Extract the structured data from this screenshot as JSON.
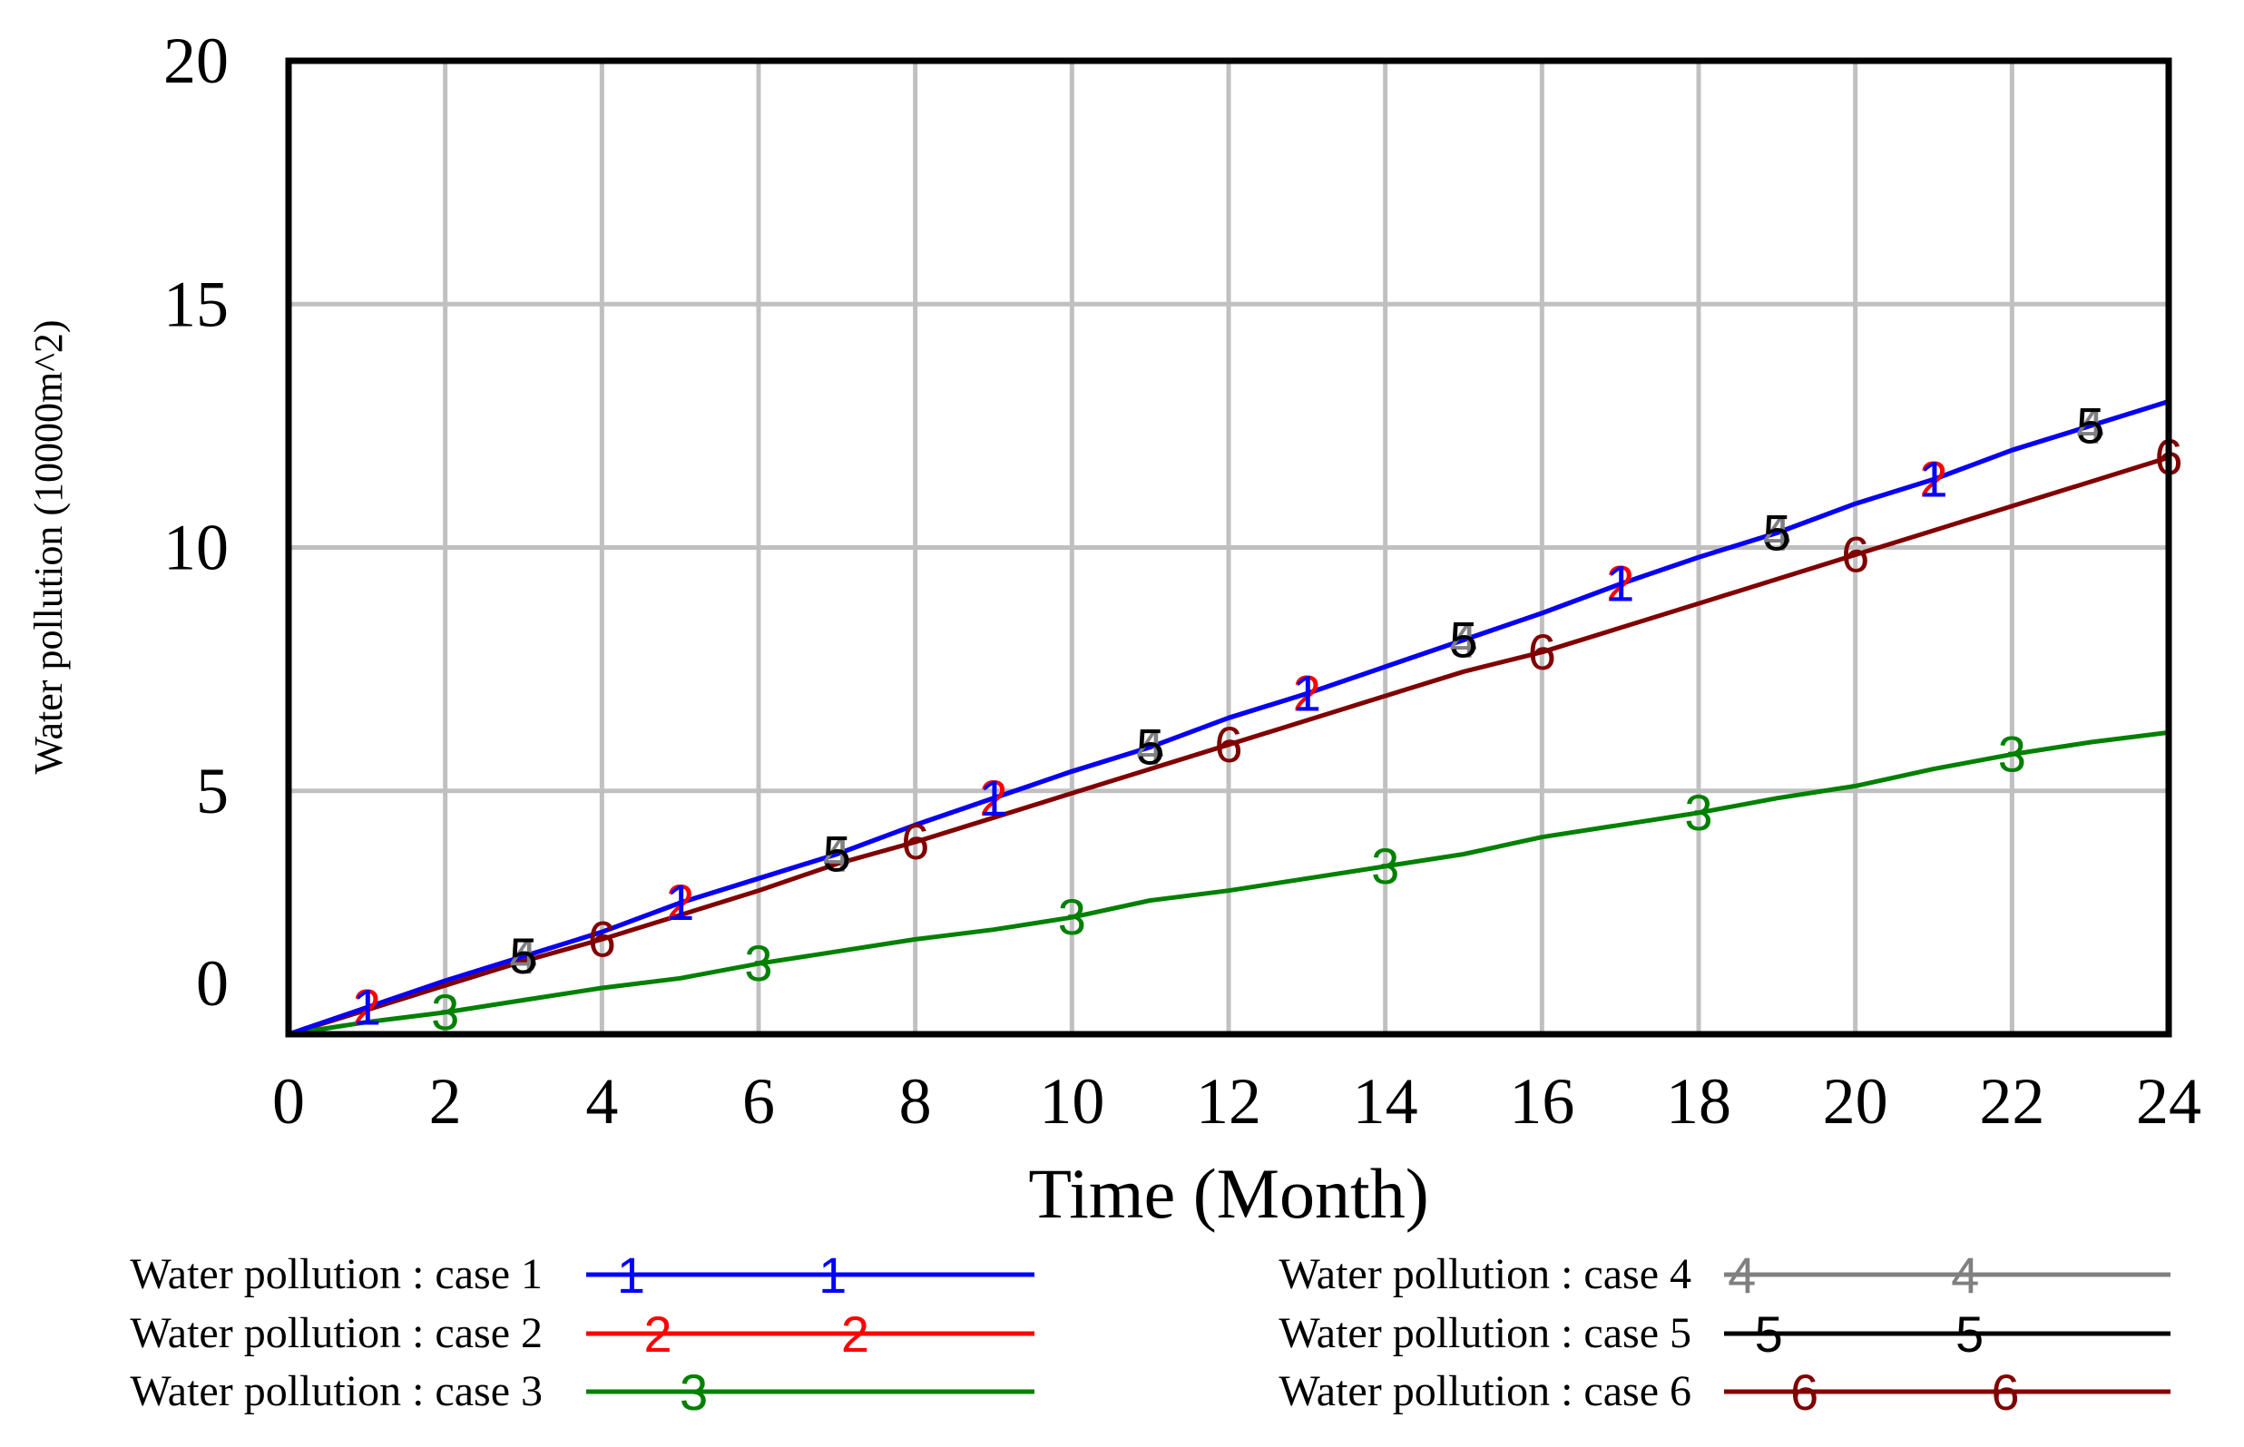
{
  "chart_data": {
    "type": "line",
    "title": "",
    "xlabel": "Time (Month)",
    "ylabel": "Water pollution (10000m^2)",
    "xlim": [
      0,
      24
    ],
    "ylim": [
      0,
      20
    ],
    "xticks": [
      0,
      2,
      4,
      6,
      8,
      10,
      12,
      14,
      16,
      18,
      20,
      22,
      24
    ],
    "yticks": [
      0,
      5,
      10,
      15,
      20
    ],
    "grid": true,
    "legend_position": "bottom",
    "x": [
      0,
      1,
      2,
      3,
      4,
      5,
      6,
      7,
      8,
      9,
      10,
      11,
      12,
      13,
      14,
      15,
      16,
      17,
      18,
      19,
      20,
      21,
      22,
      23,
      24
    ],
    "series": [
      {
        "name": "Water pollution : case 1",
        "marker": "1",
        "color": "#0000ff",
        "values": [
          0,
          0.55,
          1.1,
          1.6,
          2.1,
          2.7,
          3.2,
          3.7,
          4.3,
          4.85,
          5.4,
          5.9,
          6.5,
          7.0,
          7.55,
          8.1,
          8.65,
          9.25,
          9.8,
          10.3,
          10.9,
          11.4,
          12.0,
          12.5,
          13.0
        ]
      },
      {
        "name": "Water pollution : case 2",
        "marker": "2",
        "color": "#ff0000",
        "values": [
          0,
          0.55,
          1.1,
          1.6,
          2.1,
          2.7,
          3.2,
          3.7,
          4.3,
          4.85,
          5.4,
          5.9,
          6.5,
          7.0,
          7.55,
          8.1,
          8.65,
          9.25,
          9.8,
          10.3,
          10.9,
          11.4,
          12.0,
          12.5,
          13.0
        ]
      },
      {
        "name": "Water pollution : case 3",
        "marker": "3",
        "color": "#008000",
        "values": [
          0,
          0.25,
          0.45,
          0.7,
          0.95,
          1.15,
          1.45,
          1.7,
          1.95,
          2.15,
          2.4,
          2.75,
          2.95,
          3.2,
          3.45,
          3.7,
          4.05,
          4.3,
          4.55,
          4.85,
          5.1,
          5.45,
          5.75,
          6.0,
          6.2
        ]
      },
      {
        "name": "Water pollution : case 4",
        "marker": "4",
        "color": "#808080",
        "values": [
          0,
          0.55,
          1.1,
          1.6,
          2.1,
          2.7,
          3.2,
          3.7,
          4.3,
          4.85,
          5.4,
          5.9,
          6.5,
          7.0,
          7.55,
          8.1,
          8.65,
          9.25,
          9.8,
          10.3,
          10.9,
          11.4,
          12.0,
          12.5,
          13.0
        ]
      },
      {
        "name": "Water pollution : case 5",
        "marker": "5",
        "color": "#000000",
        "values": [
          0,
          0.55,
          1.1,
          1.6,
          2.1,
          2.7,
          3.2,
          3.7,
          4.3,
          4.85,
          5.4,
          5.9,
          6.5,
          7.0,
          7.55,
          8.1,
          8.65,
          9.25,
          9.8,
          10.3,
          10.9,
          11.4,
          12.0,
          12.5,
          13.0
        ]
      },
      {
        "name": "Water pollution : case 6",
        "marker": "6",
        "color": "#800000",
        "values": [
          0,
          0.5,
          1.0,
          1.5,
          1.95,
          2.45,
          2.95,
          3.5,
          3.95,
          4.45,
          4.95,
          5.45,
          5.95,
          6.45,
          6.95,
          7.45,
          7.85,
          8.35,
          8.85,
          9.35,
          9.85,
          10.35,
          10.85,
          11.35,
          11.85
        ]
      }
    ]
  }
}
